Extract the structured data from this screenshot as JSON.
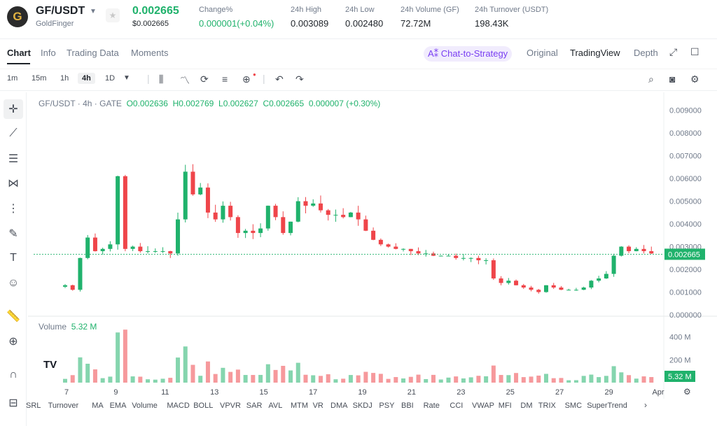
{
  "header": {
    "logo_letter": "G",
    "pair": "GF/USDT",
    "name": "GoldFinger",
    "last_price": "0.002665",
    "last_price_usd": "$0.002665",
    "stats": [
      {
        "label": "Change%",
        "value": "0.000001(+0.04%)",
        "green": true
      },
      {
        "label": "24h High",
        "value": "0.003089"
      },
      {
        "label": "24h Low",
        "value": "0.002480"
      },
      {
        "label": "24h Volume (GF)",
        "value": "72.72M"
      },
      {
        "label": "24h Turnover (USDT)",
        "value": "198.43K"
      }
    ]
  },
  "tabs": {
    "chart": "Chart",
    "info": "Info",
    "trading_data": "Trading Data",
    "moments": "Moments",
    "chat_strategy": "Chat-to-Strategy",
    "original": "Original",
    "tradingview": "TradingView",
    "depth": "Depth"
  },
  "toolbar": {
    "timeframes": [
      "1m",
      "15m",
      "1h",
      "4h",
      "1D"
    ],
    "active": "4h"
  },
  "legend": {
    "title": "GF/USDT · 4h · GATE",
    "o": "O0.002636",
    "h": "H0.002769",
    "l": "L0.002627",
    "c": "C0.002665",
    "chg": "0.000007 (+0.30%)",
    "volume_label": "Volume",
    "volume_value": "5.32 M"
  },
  "indicators": [
    "SRL",
    "Turnover",
    "MA",
    "EMA",
    "Volume",
    "MACD",
    "BOLL",
    "VPVR",
    "SAR",
    "AVL",
    "MTM",
    "VR",
    "DMA",
    "SKDJ",
    "PSY",
    "BBI",
    "Rate",
    "CCI",
    "VWAP",
    "MFI",
    "DM",
    "TRIX",
    "SMC",
    "SuperTrend"
  ],
  "colors": {
    "up": "#20b26c",
    "down": "#ef454a",
    "accent": "#7a3ff2"
  },
  "chart_data": {
    "type": "candlestick",
    "price_axis": {
      "ticks": [
        "0.009000",
        "0.008000",
        "0.007000",
        "0.006000",
        "0.005000",
        "0.004000",
        "0.003000",
        "0.002000",
        "0.001000",
        "0.000000"
      ],
      "ylim": [
        0,
        0.0093
      ]
    },
    "last_price_label": "0.002665",
    "volume_axis": {
      "ticks": [
        "400 M",
        "200 M"
      ],
      "last": "5.32 M",
      "ylim": [
        0,
        520
      ]
    },
    "x_ticks": [
      "7",
      "9",
      "11",
      "13",
      "15",
      "17",
      "19",
      "21",
      "23",
      "25",
      "27",
      "29",
      "Apr"
    ],
    "closes": [
      0.0013,
      0.0011,
      0.0025,
      0.0034,
      0.0028,
      0.0029,
      0.0031,
      0.0061,
      0.0029,
      0.003,
      0.0028,
      0.0028,
      0.0028,
      0.0028,
      0.0027,
      0.0042,
      0.0063,
      0.0053,
      0.0056,
      0.0045,
      0.0042,
      0.0048,
      0.0043,
      0.0036,
      0.0037,
      0.0036,
      0.0038,
      0.0048,
      0.0043,
      0.0036,
      0.0041,
      0.005,
      0.0048,
      0.0049,
      0.0046,
      0.0044,
      0.0044,
      0.0043,
      0.0045,
      0.0042,
      0.0037,
      0.0033,
      0.0031,
      0.003,
      0.0029,
      0.0029,
      0.0028,
      0.0027,
      0.0027,
      0.0026,
      0.0026,
      0.0026,
      0.0025,
      0.0025,
      0.0025,
      0.0024,
      0.0024,
      0.0016,
      0.0014,
      0.0015,
      0.0013,
      0.0012,
      0.0011,
      0.001,
      0.0013,
      0.0012,
      0.0011,
      0.0011,
      0.0011,
      0.0012,
      0.0015,
      0.0016,
      0.0018,
      0.0026,
      0.003,
      0.0028,
      0.0029,
      0.0028,
      0.0027
    ]
  }
}
